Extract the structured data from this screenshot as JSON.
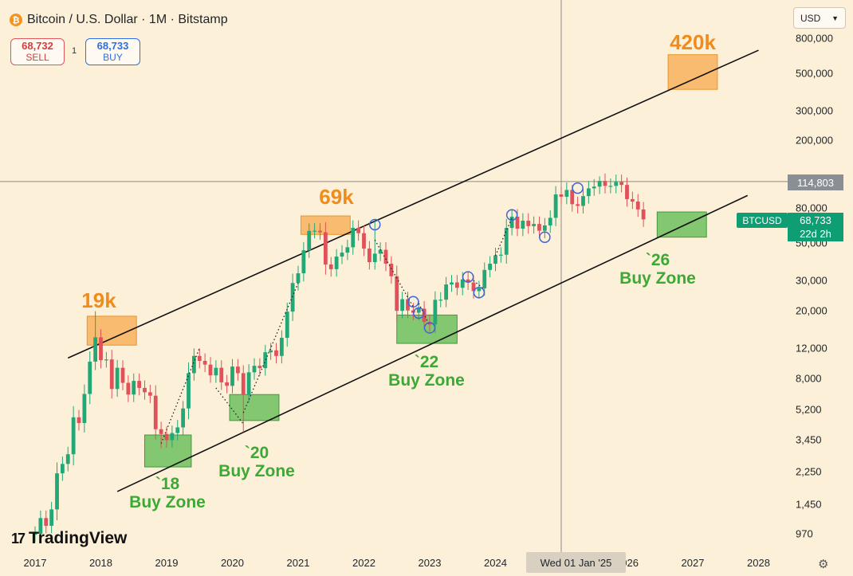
{
  "header": {
    "symbol_title": "Bitcoin / U.S. Dollar · 1M · Bitstamp",
    "sell_price": "68,732",
    "sell_label": "SELL",
    "spread": "1",
    "buy_price": "68,733",
    "buy_label": "BUY",
    "currency": "USD"
  },
  "branding": {
    "logo_text": "TradingView"
  },
  "crosshair": {
    "date_label": "Wed 01 Jan '25",
    "price_label": "114,803"
  },
  "last_price": {
    "ticker": "BTCUSD",
    "price": "68,733",
    "countdown": "22d 2h"
  },
  "colors": {
    "background": "#fdf0d9",
    "up": "#22a776",
    "down": "#e0515a",
    "peak_box": "#f8b25c",
    "buy_zone_box": "#6fbf5e",
    "peak_text": "#f08c1c",
    "zone_text": "#3ca935"
  },
  "chart_data": {
    "type": "candlestick",
    "title": "Bitcoin / U.S. Dollar · 1M · Bitstamp",
    "y_scale": "log",
    "ylim": [
      760,
      1000000
    ],
    "x_range": [
      "2016-10",
      "2028-06"
    ],
    "y_tick_labels": [
      "800,000",
      "500,000",
      "300,000",
      "200,000",
      "80,000",
      "50,000",
      "30,000",
      "20,000",
      "12,000",
      "8,000",
      "5,200",
      "3,450",
      "2,250",
      "1,450",
      "970"
    ],
    "y_tick_values": [
      800000,
      500000,
      300000,
      200000,
      80000,
      50000,
      30000,
      20000,
      12000,
      8000,
      5200,
      3450,
      2250,
      1450,
      970
    ],
    "x_tick_labels": [
      "2017",
      "2018",
      "2019",
      "2020",
      "2021",
      "2022",
      "2023",
      "2024",
      "2026",
      "2027",
      "2028"
    ],
    "x_tick_values": [
      "2017-01",
      "2018-01",
      "2019-01",
      "2020-01",
      "2021-01",
      "2022-01",
      "2023-01",
      "2024-01",
      "2026-01",
      "2027-01",
      "2028-01"
    ],
    "closes": [
      970,
      1200,
      1080,
      1350,
      2200,
      2500,
      2850,
      4700,
      4350,
      6450,
      10000,
      13900,
      10200,
      10300,
      6900,
      9200,
      7500,
      6400,
      7700,
      7000,
      6600,
      6300,
      4000,
      3750,
      3450,
      3800,
      4100,
      5300,
      8550,
      10800,
      10100,
      9600,
      8300,
      9200,
      7550,
      7200,
      9350,
      8550,
      6400,
      8650,
      9450,
      9150,
      11350,
      11650,
      10800,
      13800,
      19700,
      29000,
      33100,
      45200,
      58800,
      58900,
      57700,
      37300,
      35000,
      41500,
      43800,
      47100,
      61300,
      57000,
      46300,
      38500,
      43200,
      45500,
      37700,
      31800,
      19900,
      23300,
      20000,
      19400,
      20500,
      17100,
      16550,
      23100,
      23150,
      28450,
      29250,
      27200,
      30450,
      29200,
      26000,
      27000,
      34650,
      37700,
      42250,
      42580,
      61200,
      71300,
      60600,
      67500,
      62700,
      64600,
      58900,
      63300,
      70200,
      96400,
      93400,
      102400,
      84400,
      82500,
      94200,
      104600,
      107100,
      115700,
      108200,
      108200,
      114000,
      109600,
      90400,
      87500,
      78600,
      68700
    ],
    "annotations": {
      "peaks": [
        "19k",
        "69k",
        "420k"
      ],
      "buy_zones": [
        {
          "year": "`18",
          "label": "Buy Zone"
        },
        {
          "year": "`20",
          "label": "Buy Zone"
        },
        {
          "year": "`22",
          "label": "Buy Zone"
        },
        {
          "year": "`26",
          "label": "Buy Zone"
        }
      ]
    }
  }
}
